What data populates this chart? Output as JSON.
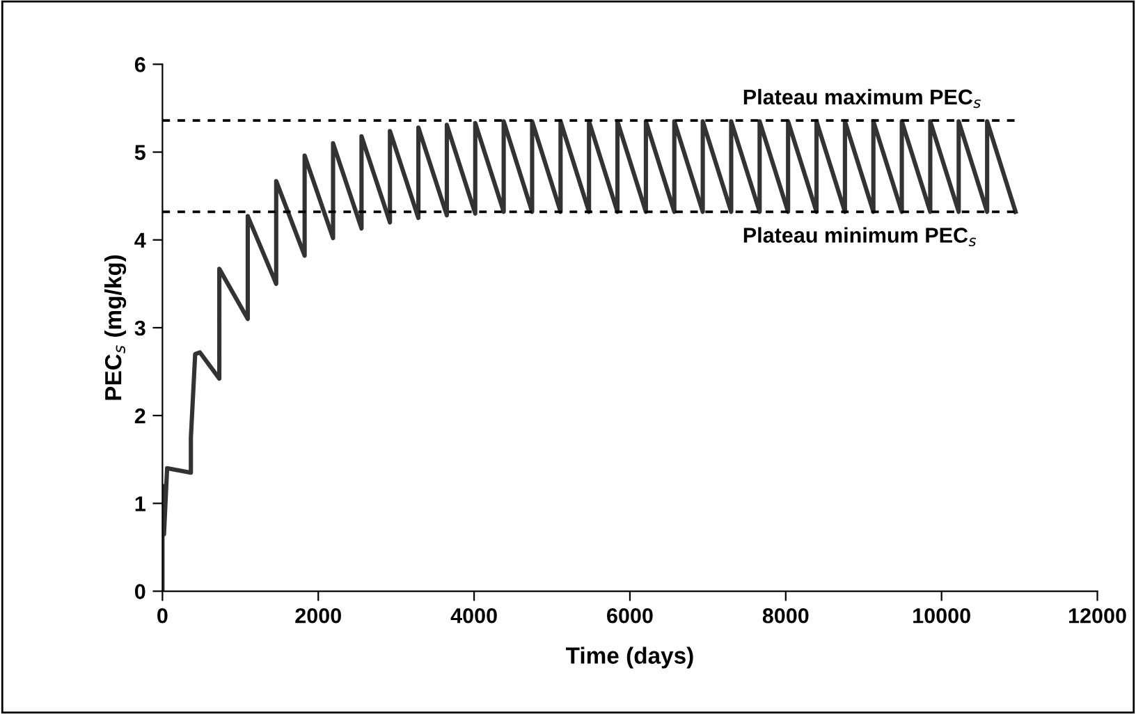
{
  "chart_data": {
    "type": "line",
    "xlabel": "Time (days)",
    "ylabel": "PEC$_{s}$ (mg/kg)",
    "x": [
      0,
      0,
      20,
      60,
      365,
      365,
      420,
      480,
      730,
      730,
      1095,
      1095,
      1460,
      1460,
      1825,
      1825,
      2190,
      2190,
      2555,
      2555,
      2920,
      2920,
      3285,
      3285,
      3650,
      3650,
      4015,
      4015,
      4380,
      4380,
      4745,
      4745,
      5110,
      5110,
      5475,
      5475,
      5840,
      5840,
      6205,
      6205,
      6570,
      6570,
      6935,
      6935,
      7300,
      7300,
      7665,
      7665,
      8030,
      8030,
      8395,
      8395,
      8760,
      8760,
      9125,
      9125,
      9490,
      9490,
      9855,
      9855,
      10220,
      10220,
      10585,
      10585,
      10950
    ],
    "series": [
      {
        "color": "#333333",
        "values": [
          0,
          1.2,
          0.65,
          1.4,
          1.35,
          1.75,
          2.7,
          2.72,
          2.42,
          3.67,
          3.1,
          4.27,
          3.5,
          4.67,
          3.82,
          4.96,
          4.02,
          5.1,
          4.13,
          5.18,
          4.2,
          5.24,
          4.25,
          5.28,
          4.28,
          5.31,
          4.3,
          5.33,
          4.32,
          5.35,
          4.32,
          5.35,
          4.32,
          5.35,
          4.32,
          5.35,
          4.32,
          5.35,
          4.32,
          5.35,
          4.32,
          5.35,
          4.32,
          5.35,
          4.32,
          5.35,
          4.32,
          5.35,
          4.32,
          5.35,
          4.32,
          5.35,
          4.32,
          5.35,
          4.32,
          5.35,
          4.32,
          5.35,
          4.32,
          5.35,
          4.32,
          5.35,
          4.32,
          5.35,
          4.32
        ]
      }
    ],
    "xlim": [
      0,
      12000
    ],
    "xticks": [
      0,
      2000,
      4000,
      6000,
      8000,
      10000,
      12000
    ],
    "ylim": [
      0,
      6
    ],
    "yticks": [
      0,
      1,
      2,
      3,
      4,
      5,
      6
    ],
    "ref_lines": [
      {
        "axis": "y",
        "value": 5.36,
        "label": "Plateau maximum PEC$_{s}$",
        "color": "#000000",
        "line_style": "dashed"
      },
      {
        "axis": "y",
        "value": 4.32,
        "label": "Plateau minimum PEC$_{s}$",
        "color": "#000000",
        "line_style": "dashed"
      }
    ],
    "grid": false,
    "legend": false,
    "marker": "none",
    "line_style": "solid"
  }
}
